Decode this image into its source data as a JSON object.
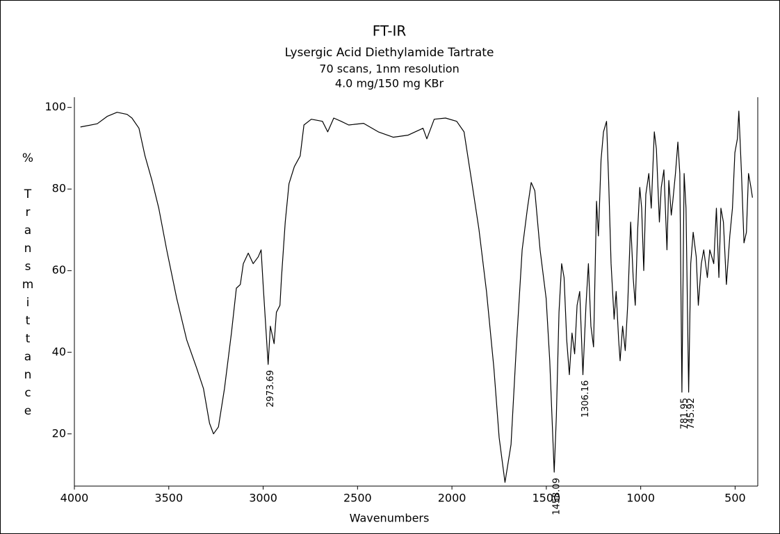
{
  "chart_data": {
    "type": "line",
    "title": "FT-IR",
    "subtitle": "Lysergic Acid Diethylamide Tartrate",
    "notes": [
      "70 scans, 1nm resolution",
      "4.0 mg/150 mg KBr"
    ],
    "xlabel": "Wavenumbers",
    "ylabel": "% Transmittance",
    "xlim": [
      4000,
      380
    ],
    "ylim": [
      7.2,
      102.5
    ],
    "xticks": [
      4000,
      3500,
      3000,
      2500,
      2000,
      1500,
      1000,
      500
    ],
    "yticks": [
      20,
      40,
      60,
      80,
      100
    ],
    "grid": false,
    "series": [
      {
        "color": "#000000",
        "x": [
          3968,
          3879,
          3826,
          3774,
          3721,
          3695,
          3658,
          3626,
          3589,
          3553,
          3511,
          3458,
          3405,
          3353,
          3316,
          3284,
          3263,
          3237,
          3205,
          3168,
          3142,
          3121,
          3105,
          3079,
          3053,
          3026,
          3011,
          3000,
          2973.69,
          2962,
          2942,
          2930,
          2911,
          2903,
          2883,
          2863,
          2835,
          2804,
          2784,
          2745,
          2686,
          2658,
          2626,
          2587,
          2547,
          2468,
          2390,
          2311,
          2232,
          2153,
          2133,
          2094,
          2034,
          1975,
          1936,
          1896,
          1857,
          1817,
          1778,
          1750,
          1719,
          1687,
          1659,
          1628,
          1600,
          1580,
          1561,
          1533,
          1501,
          1482,
          1458.09,
          1447,
          1433,
          1419,
          1406,
          1392,
          1378,
          1364,
          1350,
          1337,
          1323,
          1306.16,
          1290,
          1277,
          1264,
          1250,
          1234,
          1224,
          1210,
          1197,
          1181,
          1170,
          1157,
          1141,
          1130,
          1117,
          1109,
          1096,
          1082,
          1069,
          1053,
          1040,
          1029,
          1016,
          1005,
          995,
          984,
          973,
          957,
          944,
          928,
          917,
          901,
          891,
          877,
          861,
          851,
          838,
          830,
          816,
          803,
          793,
          781.95,
          770,
          760,
          745.92,
          735,
          722,
          706,
          695,
          679,
          666,
          647,
          634,
          613,
          599,
          586,
          575,
          562,
          546,
          528,
          514,
          501,
          488,
          480,
          466,
          453,
          440,
          429,
          416,
          408
        ],
        "values": [
          95.2,
          96,
          97.8,
          98.8,
          98.3,
          97.4,
          94.9,
          88.1,
          82.1,
          75.3,
          65.1,
          53.2,
          43,
          36.2,
          31.1,
          22.6,
          20,
          21.7,
          31.1,
          44.7,
          55.7,
          56.6,
          61.7,
          64.3,
          61.7,
          63.4,
          65.1,
          56.6,
          37,
          46.4,
          42.1,
          49.8,
          51.5,
          58.3,
          71.9,
          81.3,
          85.5,
          88.1,
          95.7,
          97.1,
          96.6,
          94,
          97.4,
          96.6,
          95.7,
          96.1,
          94,
          92.7,
          93.2,
          94.9,
          92.3,
          97.1,
          97.4,
          96.6,
          94,
          82.1,
          70.2,
          54.9,
          36.2,
          19.1,
          8.1,
          17.4,
          41.3,
          65.1,
          75.3,
          81.6,
          79.6,
          65.1,
          53.2,
          37.9,
          10.6,
          24.3,
          49.8,
          61.7,
          58.3,
          43,
          34.5,
          44.7,
          39.6,
          51.5,
          54.9,
          34.5,
          51.5,
          61.7,
          46.4,
          41.3,
          77,
          68.5,
          87.2,
          94,
          96.6,
          82.1,
          61.7,
          48.1,
          54.9,
          43,
          37.9,
          46.4,
          40.4,
          51.5,
          71.9,
          58.3,
          51.5,
          70.2,
          80.4,
          75.3,
          60,
          78.7,
          83.8,
          75.3,
          94,
          89.8,
          71.9,
          80.4,
          84.7,
          65.1,
          82.1,
          73.6,
          77,
          83.8,
          91.5,
          83.8,
          30.2,
          83.8,
          75.3,
          30.2,
          61.7,
          69.4,
          63.4,
          51.5,
          61.7,
          65.1,
          58.3,
          65.1,
          61.7,
          75.3,
          58.3,
          75.3,
          71.9,
          56.6,
          68.5,
          75.3,
          88.9,
          92.3,
          99.1,
          83.8,
          66.8,
          69.4,
          83.8,
          80.4,
          77.9
        ]
      }
    ],
    "annotations": [
      2973.69,
      1458.09,
      1306.16,
      781.95,
      745.92
    ]
  }
}
